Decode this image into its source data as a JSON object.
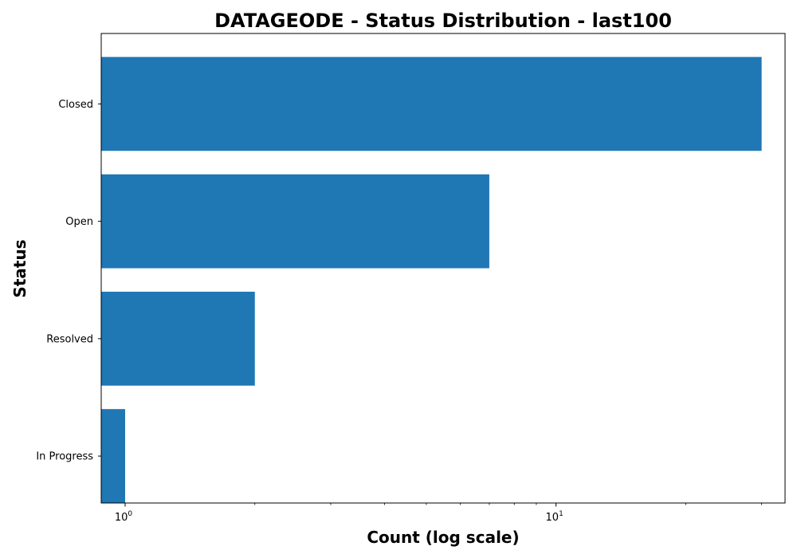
{
  "chart_data": {
    "type": "bar",
    "orientation": "horizontal",
    "title": "DATAGEODE - Status Distribution - last100",
    "xlabel": "Count (log scale)",
    "ylabel": "Status",
    "xscale": "log",
    "xlim": [
      0.88,
      34
    ],
    "categories": [
      "Closed",
      "Open",
      "Resolved",
      "In Progress"
    ],
    "values": [
      30,
      7,
      2,
      1
    ],
    "bar_color": "#1f77b4",
    "x_major_ticks": [
      {
        "value": 1,
        "base": "10",
        "exp": "0"
      },
      {
        "value": 10,
        "base": "10",
        "exp": "1"
      }
    ],
    "x_minor_ticks": [
      2,
      3,
      4,
      5,
      6,
      7,
      8,
      9,
      20,
      30
    ],
    "grid": false,
    "legend": "none"
  }
}
